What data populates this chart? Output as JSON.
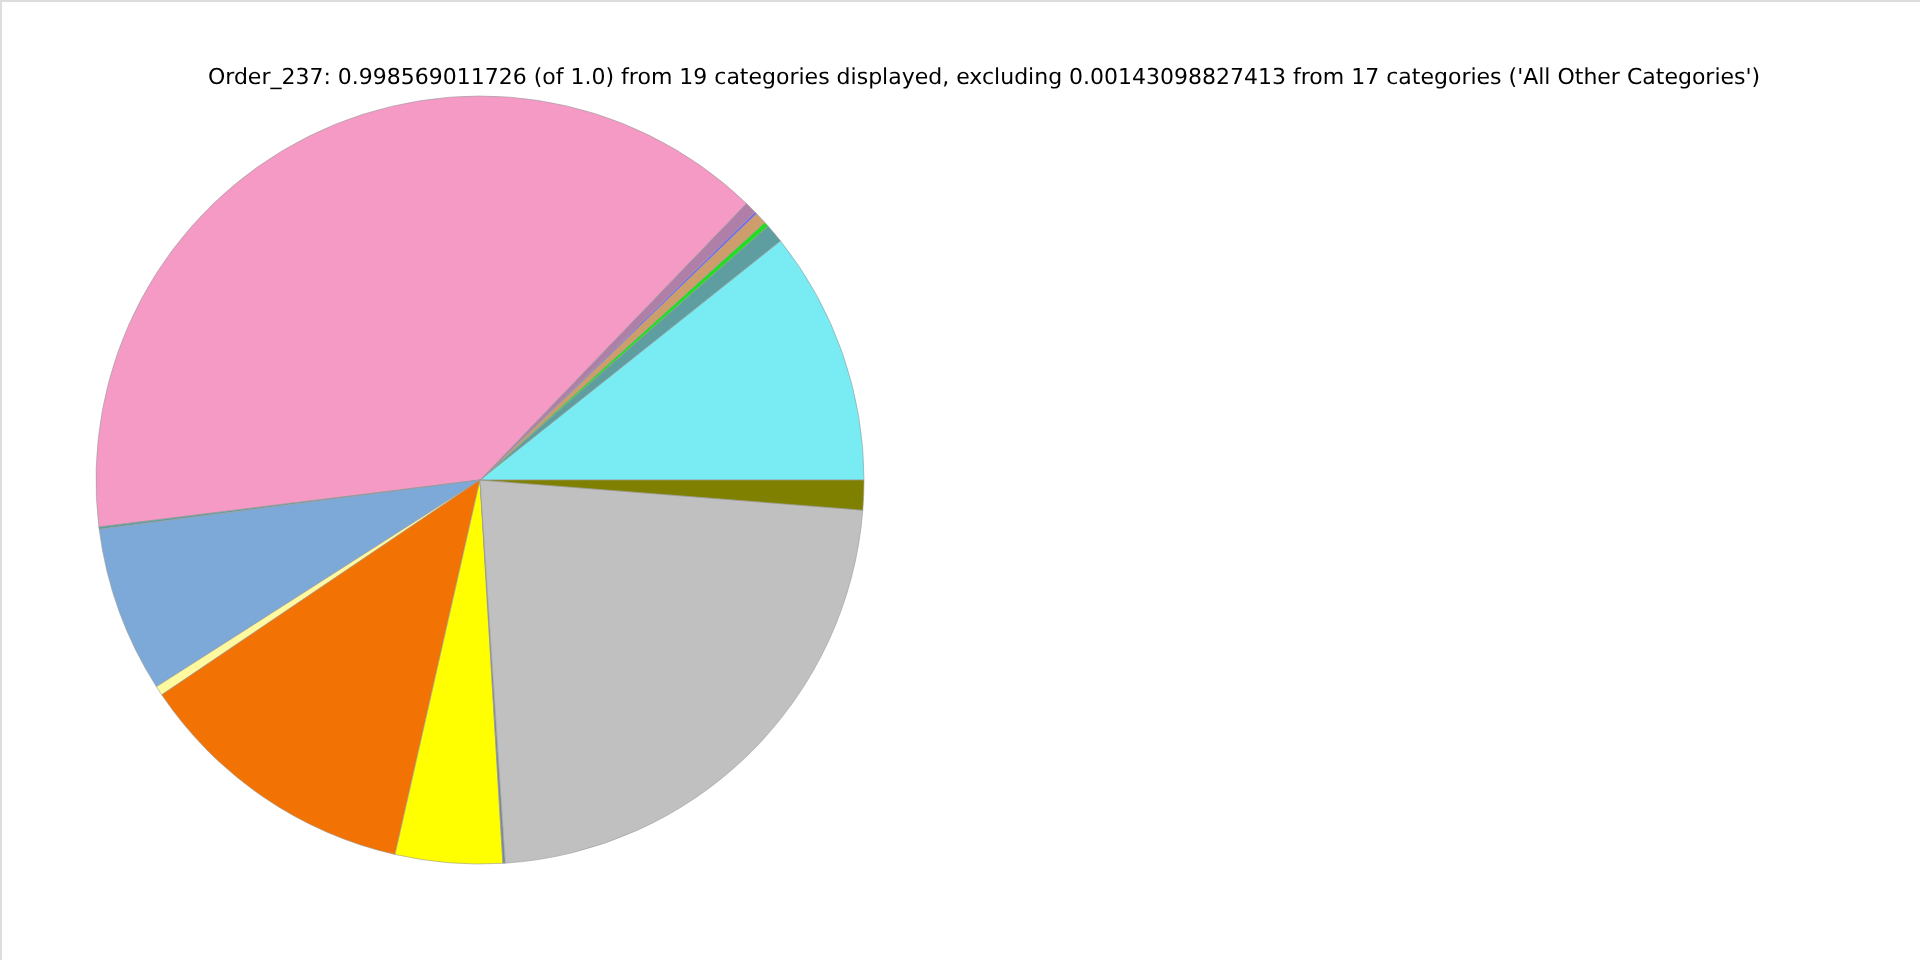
{
  "chart_data": {
    "type": "pie",
    "title": "Order_237: 0.998569011726 (of 1.0) from 19 categories displayed, excluding 0.00143098827413 from 17 categories ('All Other Categories')",
    "categories": [
      null,
      null,
      null,
      null,
      null,
      null,
      null,
      null,
      null,
      null,
      null,
      null,
      null,
      null,
      null
    ],
    "values": [
      10.7,
      0.8,
      0.2,
      0.5,
      0.1,
      0.5,
      39.15,
      0.1,
      7.0,
      0.4,
      12.0,
      4.5,
      0.1,
      22.7,
      1.25
    ],
    "colors": [
      "#79ecf3",
      "#5f9ea0",
      "#22dd22",
      "#cd9e6c",
      "#7b68ee",
      "#b07fa8",
      "#f49ac5",
      "#5f9ea0",
      "#7da9d8",
      "#fffaa0",
      "#f27304",
      "#ffff00",
      "#778899",
      "#c0c0c0",
      "#808000"
    ]
  }
}
